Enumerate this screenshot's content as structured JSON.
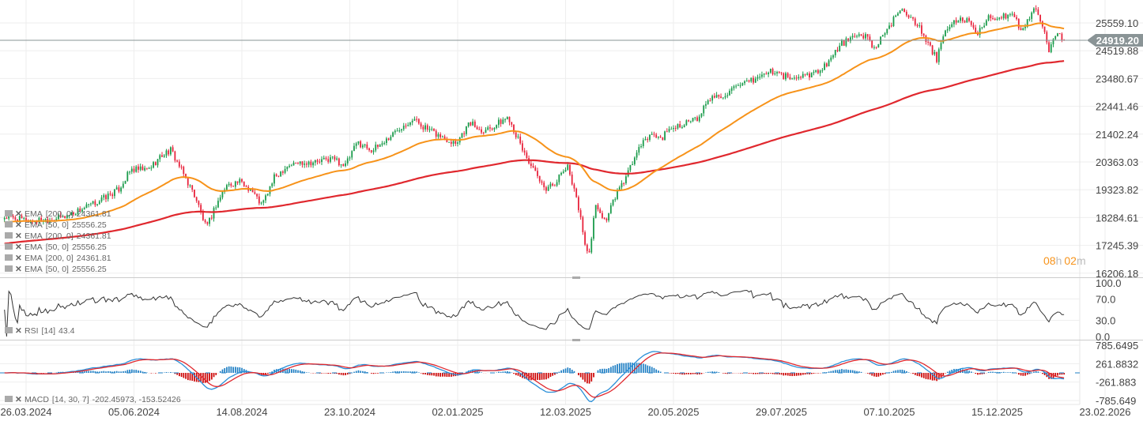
{
  "chart_data": {
    "type": "candlestick",
    "price_axis_ticks": [
      "25559.10",
      "24519.88",
      "23480.67",
      "22441.46",
      "21402.24",
      "20363.03",
      "19323.82",
      "18284.61",
      "17245.39",
      "16206.18"
    ],
    "ylim": [
      16206.18,
      26300
    ],
    "date_ticks": [
      "26.03.2024",
      "05.06.2024",
      "14.08.2024",
      "23.10.2024",
      "02.01.2025",
      "12.03.2025",
      "20.05.2025",
      "29.07.2025",
      "07.10.2025",
      "15.12.2025",
      "23.02.2026"
    ],
    "last_price": "24919.20",
    "countdown": {
      "hours": "08",
      "h": "h",
      "minutes": "02",
      "m": "m"
    },
    "close_approx": [
      [
        "2024-03-12",
        18300
      ],
      [
        "2024-03-30",
        18150
      ],
      [
        "2024-04-19",
        18300
      ],
      [
        "2024-05-09",
        18800
      ],
      [
        "2024-05-25",
        19330
      ],
      [
        "2024-06-02",
        20070
      ],
      [
        "2024-06-13",
        20070
      ],
      [
        "2024-06-23",
        20660
      ],
      [
        "2024-06-28",
        20800
      ],
      [
        "2024-07-06",
        19920
      ],
      [
        "2024-07-14",
        19040
      ],
      [
        "2024-07-21",
        17860
      ],
      [
        "2024-07-27",
        18740
      ],
      [
        "2024-08-03",
        19480
      ],
      [
        "2024-08-11",
        19630
      ],
      [
        "2024-08-19",
        19330
      ],
      [
        "2024-08-26",
        18740
      ],
      [
        "2024-09-03",
        19770
      ],
      [
        "2024-09-11",
        20215
      ],
      [
        "2024-09-21",
        20360
      ],
      [
        "2024-10-01",
        20360
      ],
      [
        "2024-10-11",
        20510
      ],
      [
        "2024-10-19",
        20215
      ],
      [
        "2024-10-27",
        21100
      ],
      [
        "2024-11-06",
        20800
      ],
      [
        "2024-11-16",
        21250
      ],
      [
        "2024-11-24",
        21690
      ],
      [
        "2024-12-02",
        21990
      ],
      [
        "2024-12-12",
        21550
      ],
      [
        "2024-12-22",
        21250
      ],
      [
        "2024-12-30",
        21100
      ],
      [
        "2025-01-08",
        21840
      ],
      [
        "2025-01-15",
        21550
      ],
      [
        "2025-01-23",
        21690
      ],
      [
        "2025-02-02",
        22050
      ],
      [
        "2025-02-10",
        20950
      ],
      [
        "2025-02-18",
        20070
      ],
      [
        "2025-02-25",
        19330
      ],
      [
        "2025-03-05",
        19630
      ],
      [
        "2025-03-12",
        20215
      ],
      [
        "2025-03-17",
        19330
      ],
      [
        "2025-03-22",
        17860
      ],
      [
        "2025-03-26",
        16670
      ],
      [
        "2025-03-30",
        18740
      ],
      [
        "2025-04-06",
        18150
      ],
      [
        "2025-04-12",
        19040
      ],
      [
        "2025-04-19",
        19770
      ],
      [
        "2025-04-27",
        20800
      ],
      [
        "2025-05-05",
        21400
      ],
      [
        "2025-05-12",
        21250
      ],
      [
        "2025-05-20",
        21690
      ],
      [
        "2025-05-29",
        21840
      ],
      [
        "2025-06-06",
        21990
      ],
      [
        "2025-06-11",
        22720
      ],
      [
        "2025-06-21",
        22870
      ],
      [
        "2025-07-02",
        23170
      ],
      [
        "2025-07-12",
        23460
      ],
      [
        "2025-07-22",
        23760
      ],
      [
        "2025-07-29",
        23610
      ],
      [
        "2025-08-06",
        23460
      ],
      [
        "2025-08-14",
        23610
      ],
      [
        "2025-08-22",
        23760
      ],
      [
        "2025-08-30",
        24200
      ],
      [
        "2025-09-06",
        24790
      ],
      [
        "2025-09-14",
        25000
      ],
      [
        "2025-09-22",
        25090
      ],
      [
        "2025-09-27",
        24640
      ],
      [
        "2025-10-04",
        25090
      ],
      [
        "2025-10-10",
        25680
      ],
      [
        "2025-10-15",
        26180
      ],
      [
        "2025-10-20",
        25820
      ],
      [
        "2025-10-25",
        25530
      ],
      [
        "2025-10-30",
        24940
      ],
      [
        "2025-11-07",
        24200
      ],
      [
        "2025-11-12",
        25230
      ],
      [
        "2025-11-20",
        25680
      ],
      [
        "2025-11-27",
        25680
      ],
      [
        "2025-12-02",
        25090
      ],
      [
        "2025-12-10",
        25770
      ],
      [
        "2025-12-19",
        25770
      ],
      [
        "2025-12-27",
        25820
      ],
      [
        "2026-01-01",
        25230
      ],
      [
        "2026-01-09",
        26180
      ],
      [
        "2026-01-14",
        25530
      ],
      [
        "2026-01-19",
        24500
      ],
      [
        "2026-01-24",
        25230
      ],
      [
        "2026-01-29",
        24919.2
      ]
    ],
    "colors": {
      "up": "#1a9b4b",
      "down": "#e8233c",
      "ema50": "#f7931a",
      "ema200": "#e0282e",
      "rsi": "#333333",
      "macd": "#2a8fd8",
      "signal": "#e0282e",
      "hist_pos": "#1f7fc4",
      "hist_neg": "#cc0000",
      "price_tag": "#8a9496"
    },
    "rsi": {
      "ticks": [
        "100.0",
        "70.0",
        "30.0",
        "0.0"
      ]
    },
    "macd": {
      "ticks": [
        "785.6495",
        "261.8832",
        "-261.883",
        "-785.649"
      ]
    }
  },
  "legend": {
    "ema_rows": [
      {
        "name": "EMA",
        "params": "[200,  0]",
        "value": "24361.81"
      },
      {
        "name": "EMA",
        "params": "[50,  0]",
        "value": "25556.25"
      },
      {
        "name": "EMA",
        "params": "[200,  0]",
        "value": "24361.81"
      },
      {
        "name": "EMA",
        "params": "[50,  0]",
        "value": "25556.25"
      },
      {
        "name": "EMA",
        "params": "[200,  0]",
        "value": "24361.81"
      },
      {
        "name": "EMA",
        "params": "[50,  0]",
        "value": "25556.25"
      }
    ],
    "rsi": {
      "name": "RSI",
      "params": "[14]",
      "value": "43.4"
    },
    "macd": {
      "name": "MACD",
      "params": "[14,  30,  7]",
      "value": "-202.45973,  -153.52426"
    }
  }
}
